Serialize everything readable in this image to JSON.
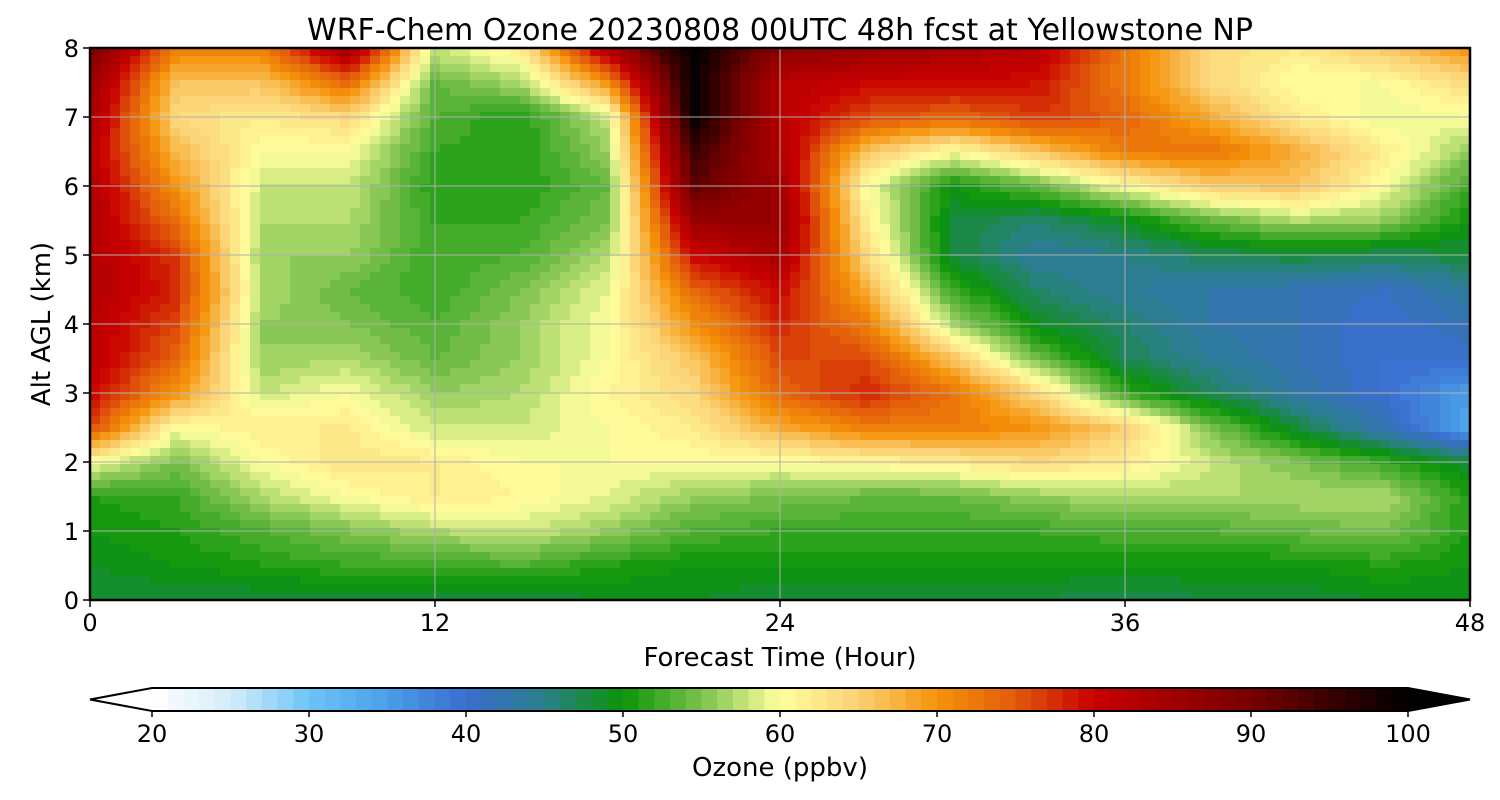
{
  "chart_data": {
    "type": "heatmap",
    "title": "WRF-Chem Ozone  20230808 00UTC 48h fcst at Yellowstone NP",
    "xlabel": "Forecast Time (Hour)",
    "ylabel": "Alt AGL (km)",
    "xlim": [
      0,
      48
    ],
    "ylim": [
      0,
      8
    ],
    "x_ticks": [
      "0",
      "12",
      "24",
      "36",
      "48"
    ],
    "y_ticks": [
      "0",
      "1",
      "2",
      "3",
      "4",
      "5",
      "6",
      "7",
      "8"
    ],
    "grid": true,
    "x": [
      0,
      3,
      6,
      9,
      12,
      15,
      18,
      21,
      24,
      27,
      30,
      33,
      36,
      39,
      42,
      45,
      48
    ],
    "y": [
      0,
      0.5,
      1,
      1.5,
      2,
      2.5,
      3,
      3.5,
      4,
      4.5,
      5,
      5.5,
      6,
      6.5,
      7,
      7.5,
      8
    ],
    "z": [
      [
        48,
        48,
        48,
        48,
        48,
        48,
        49,
        49,
        48,
        48,
        48,
        48,
        47,
        48,
        48,
        49,
        49
      ],
      [
        49,
        50,
        51,
        52,
        52,
        53,
        51,
        50,
        50,
        50,
        50,
        50,
        50,
        50,
        50,
        51,
        50
      ],
      [
        50,
        51,
        53,
        55,
        57,
        58,
        56,
        53,
        52,
        52,
        52,
        52,
        53,
        53,
        54,
        55,
        51
      ],
      [
        51,
        52,
        57,
        60,
        62,
        61,
        59,
        56,
        55,
        54,
        54,
        56,
        57,
        57,
        57,
        57,
        51
      ],
      [
        60,
        55,
        60,
        63,
        62,
        60,
        60,
        60,
        60,
        61,
        62,
        64,
        62,
        58,
        55,
        52,
        48
      ],
      [
        76,
        60,
        62,
        62,
        58,
        58,
        60,
        62,
        68,
        72,
        72,
        70,
        65,
        55,
        48,
        42,
        34
      ],
      [
        80,
        70,
        58,
        60,
        56,
        57,
        61,
        64,
        74,
        78,
        73,
        64,
        52,
        47,
        43,
        40,
        35
      ],
      [
        82,
        74,
        56,
        57,
        54,
        56,
        60,
        66,
        76,
        76,
        66,
        54,
        47,
        44,
        42,
        40,
        40
      ],
      [
        82,
        76,
        56,
        55,
        53,
        56,
        60,
        70,
        78,
        72,
        57,
        49,
        46,
        43,
        42,
        40,
        42
      ],
      [
        83,
        78,
        57,
        54,
        52,
        55,
        59,
        74,
        80,
        68,
        52,
        46,
        44,
        43,
        42,
        41,
        44
      ],
      [
        83,
        77,
        56,
        56,
        52,
        53,
        57,
        80,
        84,
        64,
        48,
        44,
        45,
        47,
        48,
        47,
        48
      ],
      [
        83,
        73,
        57,
        57,
        52,
        52,
        55,
        86,
        86,
        62,
        48,
        46,
        49,
        54,
        57,
        56,
        50
      ],
      [
        83,
        70,
        58,
        58,
        51,
        51,
        54,
        92,
        85,
        60,
        50,
        54,
        60,
        65,
        66,
        60,
        52
      ],
      [
        82,
        67,
        60,
        60,
        52,
        51,
        56,
        95,
        83,
        66,
        60,
        66,
        72,
        73,
        68,
        62,
        56
      ],
      [
        84,
        64,
        62,
        64,
        53,
        51,
        58,
        100,
        82,
        76,
        74,
        77,
        74,
        68,
        62,
        59,
        60
      ],
      [
        86,
        66,
        66,
        74,
        54,
        57,
        70,
        100,
        82,
        80,
        80,
        79,
        72,
        64,
        60,
        60,
        64
      ],
      [
        90,
        72,
        72,
        86,
        58,
        62,
        84,
        100,
        88,
        86,
        84,
        82,
        72,
        64,
        62,
        66,
        70
      ]
    ],
    "colorbar": {
      "label": "Ozone  (ppbv)",
      "min": 20,
      "max": 100,
      "step": 1,
      "ticks": [
        "20",
        "30",
        "40",
        "50",
        "60",
        "70",
        "80",
        "90",
        "100"
      ],
      "extend": "both",
      "color_stops": [
        [
          20,
          "#ffffff"
        ],
        [
          25,
          "#d4ecfa"
        ],
        [
          30,
          "#6ec4f7"
        ],
        [
          35,
          "#4a9fe8"
        ],
        [
          40,
          "#3a6dcf"
        ],
        [
          45,
          "#2a7f8a"
        ],
        [
          50,
          "#0b9408"
        ],
        [
          55,
          "#7cc24e"
        ],
        [
          60,
          "#ffff9e"
        ],
        [
          65,
          "#fbd073"
        ],
        [
          70,
          "#f5930a"
        ],
        [
          75,
          "#e25a0b"
        ],
        [
          80,
          "#c80000"
        ],
        [
          85,
          "#a00000"
        ],
        [
          90,
          "#780000"
        ],
        [
          95,
          "#3a0000"
        ],
        [
          100,
          "#000000"
        ]
      ]
    }
  }
}
